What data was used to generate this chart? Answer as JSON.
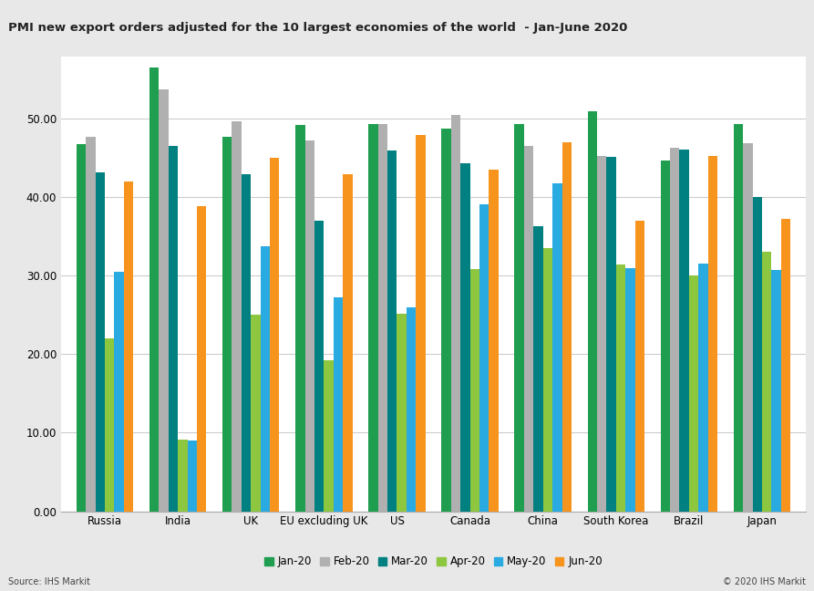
{
  "title": "PMI new export orders adjusted for the 10 largest economies of the world  - Jan-June 2020",
  "categories": [
    "Russia",
    "India",
    "UK",
    "EU excluding UK",
    "US",
    "Canada",
    "China",
    "South Korea",
    "Brazil",
    "Japan"
  ],
  "months": [
    "Jan-20",
    "Feb-20",
    "Mar-20",
    "Apr-20",
    "May-20",
    "Jun-20"
  ],
  "colors": [
    "#1e9e4e",
    "#b0b0b0",
    "#008080",
    "#8dc63f",
    "#29abe2",
    "#f7941d"
  ],
  "data": {
    "Russia": [
      46.8,
      47.7,
      43.2,
      22.0,
      30.5,
      42.0
    ],
    "India": [
      56.5,
      53.8,
      46.6,
      9.1,
      9.0,
      38.9
    ],
    "UK": [
      47.7,
      49.7,
      43.0,
      25.0,
      33.8,
      45.0
    ],
    "EU excluding UK": [
      49.2,
      47.2,
      37.0,
      19.2,
      27.3,
      43.0
    ],
    "US": [
      49.3,
      49.3,
      46.0,
      25.2,
      26.0,
      47.9
    ],
    "Canada": [
      48.8,
      50.5,
      44.3,
      30.9,
      39.1,
      43.5
    ],
    "China": [
      49.3,
      46.5,
      36.3,
      33.5,
      41.8,
      47.0
    ],
    "South Korea": [
      51.0,
      45.3,
      45.2,
      31.4,
      31.0,
      37.0
    ],
    "Brazil": [
      44.7,
      46.3,
      46.1,
      30.1,
      31.6,
      45.3
    ],
    "Japan": [
      49.3,
      46.9,
      40.0,
      33.1,
      30.8,
      37.3
    ]
  },
  "ylim": [
    0,
    58
  ],
  "yticks": [
    0.0,
    10.0,
    20.0,
    30.0,
    40.0,
    50.0
  ],
  "source_left": "Source: IHS Markit",
  "source_right": "© 2020 IHS Markit",
  "fig_bg_color": "#e8e8e8",
  "title_bg_color": "#d0d0d0",
  "title_text_color": "#222222",
  "plot_bg_color": "#ffffff",
  "bar_width": 0.13,
  "grid_color": "#cccccc",
  "tick_label_size": 8.5,
  "legend_fontsize": 8.5,
  "title_fontsize": 9.5
}
